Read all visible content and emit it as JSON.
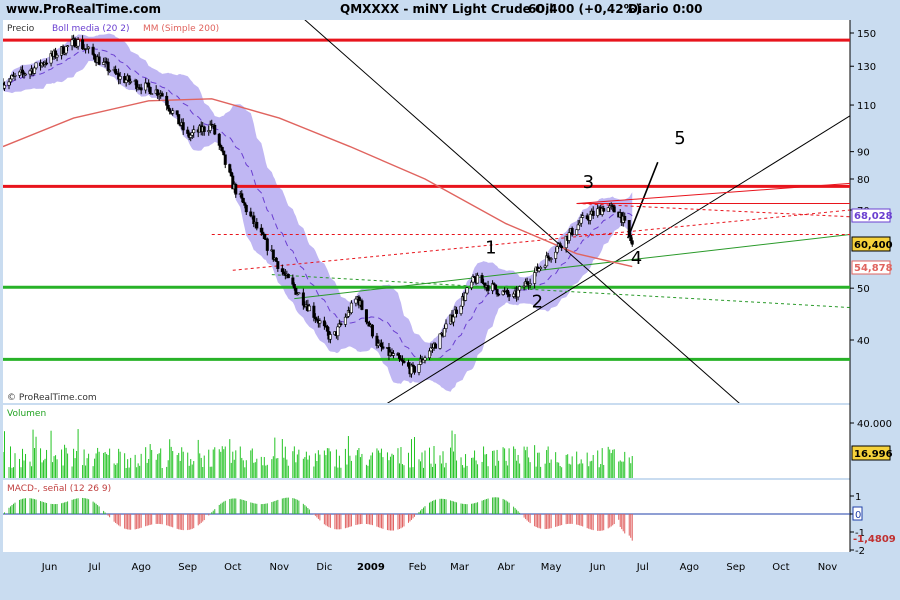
{
  "header": {
    "site": "www.ProRealTime.com",
    "symbol": "QMXXXX - miNY Light Crude Oil",
    "quote": "60,400 (+0,42%)",
    "period": "Diario  0:00"
  },
  "legend": {
    "precio": "Precio",
    "boll": "Boll media (20 2)",
    "mm": "MM (Simple 200)"
  },
  "copyright": "© ProRealTime.com",
  "price_badges": {
    "boll": "68,028",
    "last": "60,400",
    "mm": "54,878"
  },
  "volume_badge": "16.996",
  "macd_badge": "-1,4809",
  "wave_labels": [
    "1",
    "2",
    "3",
    "4",
    "5"
  ],
  "colors": {
    "background": "#c9dcf0",
    "plot": "#ffffff",
    "hline_red": "#e8141c",
    "hline_green": "#28b228",
    "boll_band": "#bdb3f2",
    "mm200": "#e0645f",
    "volume": "#23c323",
    "macd_pos": "#33bb33",
    "macd_neg": "#e06060"
  },
  "chart_data": [
    {
      "type": "candlestick",
      "name": "Precio",
      "x_range": [
        "2008-05-15",
        "2009-11-30"
      ],
      "x_ticks": [
        "Jun",
        "Jul",
        "Ago",
        "Sep",
        "Oct",
        "Nov",
        "Dic",
        "2009",
        "Feb",
        "Mar",
        "Abr",
        "May",
        "Jun",
        "Jul",
        "Ago",
        "Sep",
        "Oct",
        "Nov"
      ],
      "y_scale": "log",
      "y_ticks": [
        150,
        130,
        110,
        90,
        80,
        70,
        50,
        40
      ],
      "ylim": [
        31,
        155
      ],
      "horizontal_lines": [
        {
          "value": 145.5,
          "color": "red"
        },
        {
          "value": 77.5,
          "color": "red"
        },
        {
          "value": 50.2,
          "color": "green"
        },
        {
          "value": 36.8,
          "color": "green"
        }
      ],
      "close_path": [
        [
          "2008-05-15",
          121
        ],
        [
          "2008-06-05",
          129
        ],
        [
          "2008-07-03",
          145
        ],
        [
          "2008-07-31",
          124
        ],
        [
          "2008-08-28",
          116
        ],
        [
          "2008-09-15",
          96
        ],
        [
          "2008-10-01",
          101
        ],
        [
          "2008-10-15",
          78
        ],
        [
          "2008-11-01",
          64
        ],
        [
          "2008-11-20",
          52
        ],
        [
          "2008-12-05",
          46
        ],
        [
          "2008-12-20",
          40
        ],
        [
          "2009-01-06",
          48
        ],
        [
          "2009-01-20",
          39
        ],
        [
          "2009-02-12",
          35
        ],
        [
          "2009-03-01",
          40
        ],
        [
          "2009-03-25",
          52
        ],
        [
          "2009-04-20",
          48
        ],
        [
          "2009-05-15",
          58
        ],
        [
          "2009-06-05",
          67
        ],
        [
          "2009-06-20",
          71
        ],
        [
          "2009-06-30",
          69
        ],
        [
          "2009-07-08",
          60.4
        ]
      ],
      "last_value": 60.4,
      "boll_mid_last": 68.028,
      "mm200_last": 54.878
    },
    {
      "type": "bar",
      "name": "Volumen",
      "y_ticks": [
        40000
      ],
      "last_value": 16996
    },
    {
      "type": "bar",
      "name": "MACD-, señal (12 26 9)",
      "y_ticks": [
        1,
        0,
        -1,
        -2
      ],
      "last_value": -1.4809
    }
  ]
}
